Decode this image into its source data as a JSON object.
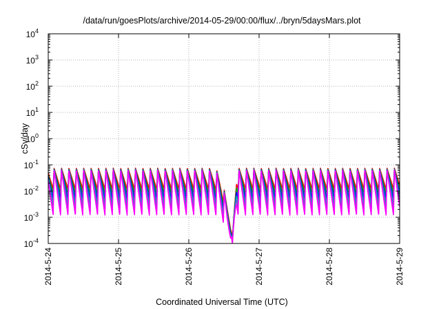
{
  "chart_data": {
    "type": "line",
    "title": "/data/run/goesPlots/archive/2014-05-29/00:00/flux/../bryn/5daysMars.plot",
    "xlabel": "Coordinated Universal Time (UTC)",
    "ylabel": "cSv/day",
    "x_tick_labels": [
      "2014-5-24",
      "2014-5-25",
      "2014-5-26",
      "2014-5-27",
      "2014-5-28",
      "2014-5-29"
    ],
    "y_scale": "log",
    "y_tick_exponents": [
      -4,
      -3,
      -2,
      -1,
      0,
      1,
      2,
      3,
      4
    ],
    "y_tick_base": "10",
    "ylim": [
      0.0001,
      10000
    ],
    "xlim": [
      "2014-5-24",
      "2014-5-29"
    ],
    "grid": true,
    "legend": "none",
    "pattern": {
      "description": "repeating sawtooth: sharp rise to peak then decay, about 9 cycles per day",
      "cycles_per_day": 9.5,
      "dip_center": "2014-5-26 ~15:00"
    },
    "series": [
      {
        "color": "#ff0000",
        "peak": 0.075,
        "trough": 0.012,
        "dip_min": 0.00015
      },
      {
        "color": "#00aa00",
        "peak": 0.07,
        "trough": 0.008,
        "dip_min": 0.00013
      },
      {
        "color": "#0000ff",
        "peak": 0.068,
        "trough": 0.005,
        "dip_min": 0.00012
      },
      {
        "color": "#00aaaa",
        "peak": 0.066,
        "trough": 0.0032,
        "dip_min": 0.00011
      },
      {
        "color": "#6a5acd",
        "peak": 0.064,
        "trough": 0.002,
        "dip_min": 0.0001
      },
      {
        "color": "#ff00ff",
        "peak": 0.062,
        "trough": 0.0012,
        "dip_min": 0.0001
      }
    ],
    "colors": {
      "grid": "#b0b0b0",
      "axis": "#000000",
      "background": "#ffffff"
    }
  }
}
